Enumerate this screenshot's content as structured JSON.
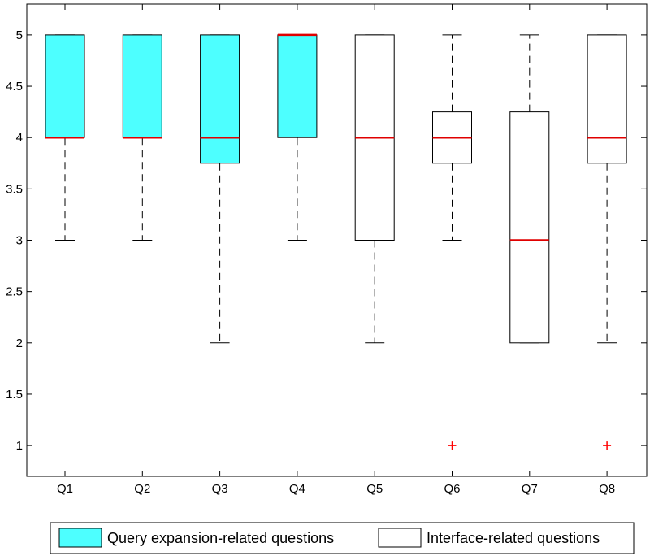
{
  "chart_data": {
    "type": "boxplot",
    "title": "",
    "xlabel": "",
    "ylabel": "",
    "ylim": [
      0.7,
      5.3
    ],
    "yticks": [
      1,
      1.5,
      2,
      2.5,
      3,
      3.5,
      4,
      4.5,
      5
    ],
    "ytick_labels": [
      "1",
      "1.5",
      "2",
      "2.5",
      "3",
      "3.5",
      "4",
      "4.5",
      "5"
    ],
    "categories": [
      "Q1",
      "Q2",
      "Q3",
      "Q4",
      "Q5",
      "Q6",
      "Q7",
      "Q8"
    ],
    "boxes": [
      {
        "label": "Q1",
        "group": "query",
        "whisker_low": 3,
        "q1": 4,
        "median": 4,
        "q3": 5,
        "whisker_high": 5,
        "outliers": []
      },
      {
        "label": "Q2",
        "group": "query",
        "whisker_low": 3,
        "q1": 4,
        "median": 4,
        "q3": 5,
        "whisker_high": 5,
        "outliers": []
      },
      {
        "label": "Q3",
        "group": "query",
        "whisker_low": 2,
        "q1": 3.75,
        "median": 4,
        "q3": 5,
        "whisker_high": 5,
        "outliers": []
      },
      {
        "label": "Q4",
        "group": "query",
        "whisker_low": 3,
        "q1": 4,
        "median": 5,
        "q3": 5,
        "whisker_high": 5,
        "outliers": []
      },
      {
        "label": "Q5",
        "group": "interface",
        "whisker_low": 2,
        "q1": 3,
        "median": 4,
        "q3": 5,
        "whisker_high": 5,
        "outliers": []
      },
      {
        "label": "Q6",
        "group": "interface",
        "whisker_low": 3,
        "q1": 3.75,
        "median": 4,
        "q3": 4.25,
        "whisker_high": 5,
        "outliers": [
          1
        ]
      },
      {
        "label": "Q7",
        "group": "interface",
        "whisker_low": 2,
        "q1": 2,
        "median": 3,
        "q3": 4.25,
        "whisker_high": 5,
        "outliers": []
      },
      {
        "label": "Q8",
        "group": "interface",
        "whisker_low": 2,
        "q1": 3.75,
        "median": 4,
        "q3": 5,
        "whisker_high": 5,
        "outliers": [
          1
        ]
      }
    ],
    "legend": {
      "placement": "bottom",
      "entries": [
        {
          "key": "query",
          "label": "Query expansion-related questions",
          "color": "#4dffff"
        },
        {
          "key": "interface",
          "label": "Interface-related questions",
          "color": "#ffffff"
        }
      ]
    },
    "colors": {
      "query_fill": "#4dffff",
      "interface_fill": "#ffffff",
      "median": "#e00000",
      "outlier": "#ff0000",
      "whisker": "#000000"
    },
    "grid": false
  }
}
